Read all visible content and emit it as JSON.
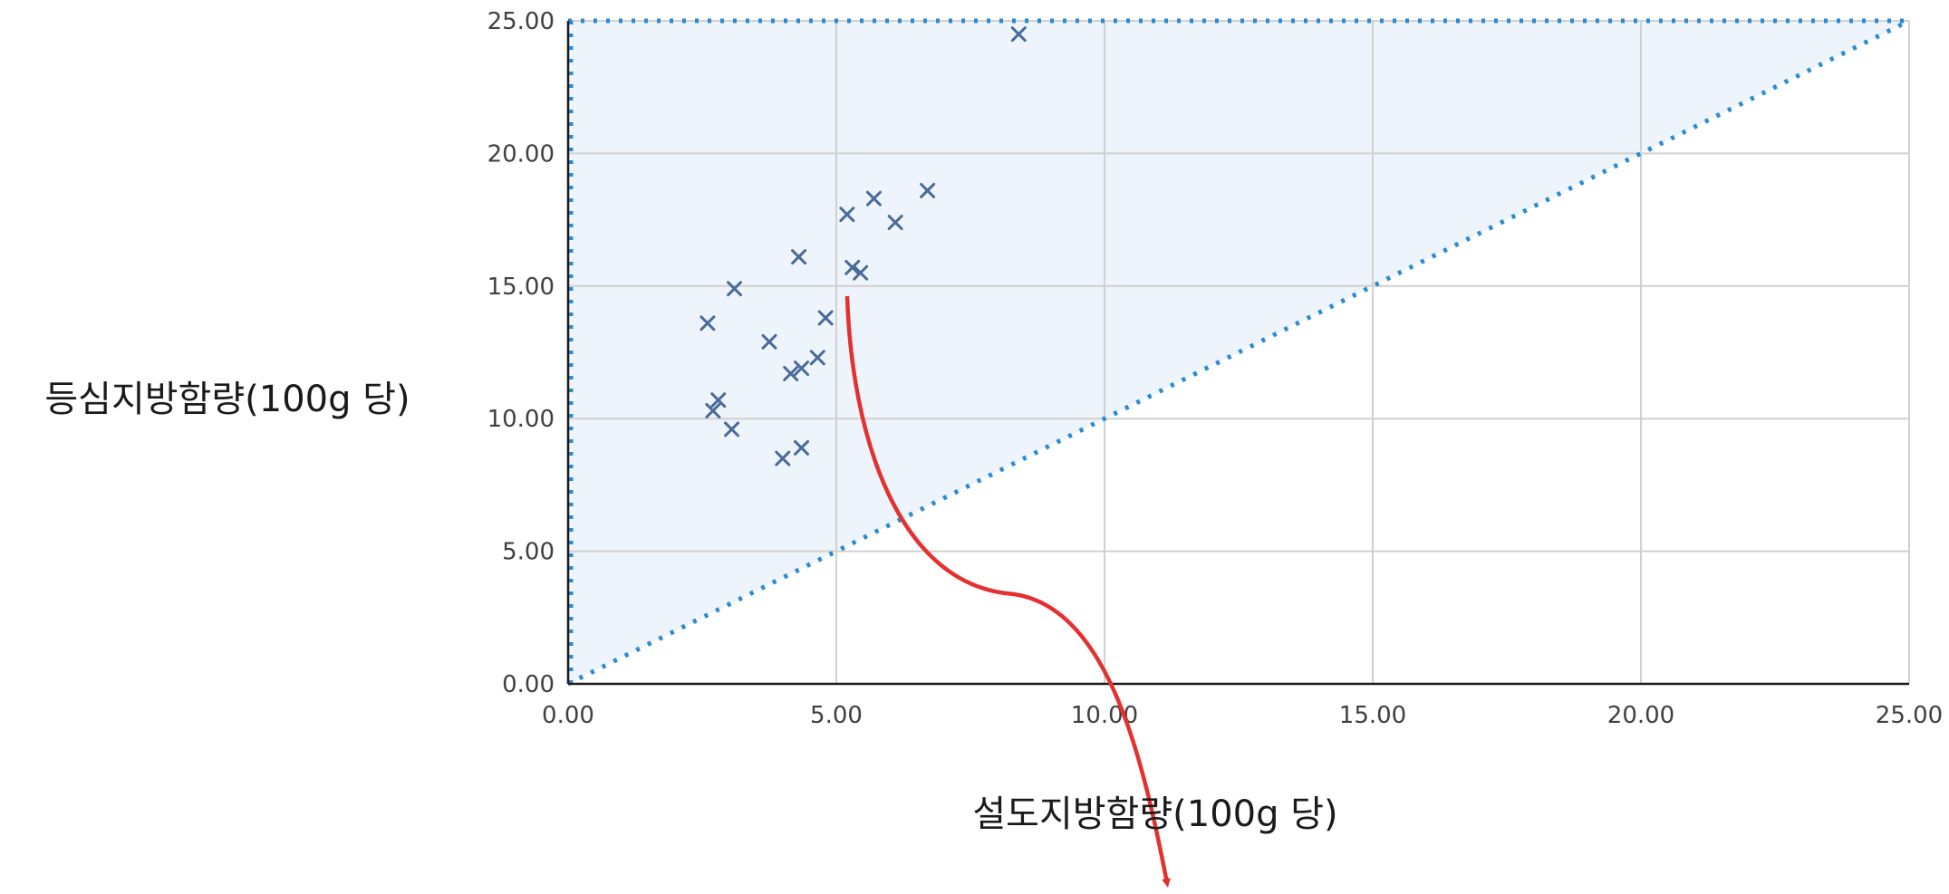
{
  "chart_data": {
    "type": "scatter",
    "title": "",
    "xlabel": "설도지방함량(100g 당)",
    "ylabel": "등심지방함량(100g 당)",
    "xlim": [
      0,
      25
    ],
    "ylim": [
      0,
      25
    ],
    "x_ticks": [
      "0.00",
      "5.00",
      "10.00",
      "15.00",
      "20.00",
      "25.00"
    ],
    "y_ticks": [
      "0.00",
      "5.00",
      "10.00",
      "15.00",
      "20.00",
      "25.00"
    ],
    "grid": true,
    "legend": "none",
    "marker": "x",
    "marker_color": "#4a6a9a",
    "region_color": "#eef4fb",
    "reference_line_color": "#2a8ad4",
    "annotation_arrow_color": "#e53030",
    "points": [
      {
        "x": 8.4,
        "y": 24.5
      },
      {
        "x": 6.7,
        "y": 18.6
      },
      {
        "x": 5.7,
        "y": 18.3
      },
      {
        "x": 5.2,
        "y": 17.7
      },
      {
        "x": 6.1,
        "y": 17.4
      },
      {
        "x": 4.3,
        "y": 16.1
      },
      {
        "x": 5.3,
        "y": 15.7
      },
      {
        "x": 5.45,
        "y": 15.5
      },
      {
        "x": 3.1,
        "y": 14.9
      },
      {
        "x": 4.8,
        "y": 13.8
      },
      {
        "x": 2.6,
        "y": 13.6
      },
      {
        "x": 3.75,
        "y": 12.9
      },
      {
        "x": 4.65,
        "y": 12.3
      },
      {
        "x": 4.35,
        "y": 11.9
      },
      {
        "x": 4.15,
        "y": 11.7
      },
      {
        "x": 2.8,
        "y": 10.7
      },
      {
        "x": 2.7,
        "y": 10.3
      },
      {
        "x": 3.05,
        "y": 9.6
      },
      {
        "x": 4.35,
        "y": 8.9
      },
      {
        "x": 4.0,
        "y": 8.5
      }
    ]
  }
}
